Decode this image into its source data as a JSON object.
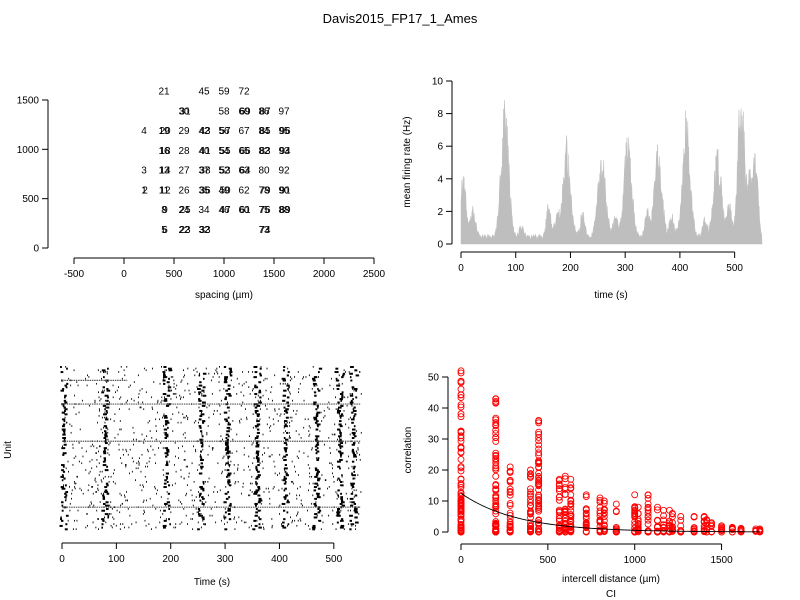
{
  "figure_title": "Davis2015_FP17_1_Ames",
  "chart_data": [
    {
      "type": "scatter",
      "id": "unit-layout",
      "xlabel": "spacing (µm)",
      "ylabel": "",
      "xlim": [
        -500,
        2500
      ],
      "ylim": [
        0,
        1500
      ],
      "xticks": [
        -500,
        0,
        500,
        1000,
        1500,
        2000,
        2500
      ],
      "yticks": [
        0,
        500,
        1000,
        1500
      ],
      "labels": [
        {
          "text": "21",
          "x": 400,
          "y": 1590
        },
        {
          "text": "45",
          "x": 800,
          "y": 1590
        },
        {
          "text": "59",
          "x": 1000,
          "y": 1590
        },
        {
          "text": "72",
          "x": 1200,
          "y": 1590
        },
        {
          "text": "30",
          "x": 600,
          "y": 1390
        },
        {
          "text": "31",
          "x": 610,
          "y": 1390
        },
        {
          "text": "58",
          "x": 1000,
          "y": 1390
        },
        {
          "text": "60",
          "x": 1200,
          "y": 1390
        },
        {
          "text": "69",
          "x": 1210,
          "y": 1390
        },
        {
          "text": "86",
          "x": 1400,
          "y": 1390
        },
        {
          "text": "87",
          "x": 1410,
          "y": 1390
        },
        {
          "text": "97",
          "x": 1600,
          "y": 1390
        },
        {
          "text": "4",
          "x": 200,
          "y": 1190
        },
        {
          "text": "19",
          "x": 400,
          "y": 1190
        },
        {
          "text": "20",
          "x": 410,
          "y": 1190
        },
        {
          "text": "29",
          "x": 600,
          "y": 1190
        },
        {
          "text": "42",
          "x": 800,
          "y": 1190
        },
        {
          "text": "43",
          "x": 810,
          "y": 1190
        },
        {
          "text": "56",
          "x": 1000,
          "y": 1190
        },
        {
          "text": "57",
          "x": 1010,
          "y": 1190
        },
        {
          "text": "67",
          "x": 1200,
          "y": 1190
        },
        {
          "text": "84",
          "x": 1400,
          "y": 1190
        },
        {
          "text": "85",
          "x": 1410,
          "y": 1190
        },
        {
          "text": "95",
          "x": 1600,
          "y": 1190
        },
        {
          "text": "96",
          "x": 1610,
          "y": 1190
        },
        {
          "text": "16",
          "x": 400,
          "y": 990
        },
        {
          "text": "18",
          "x": 410,
          "y": 990
        },
        {
          "text": "28",
          "x": 600,
          "y": 990
        },
        {
          "text": "40",
          "x": 800,
          "y": 990
        },
        {
          "text": "41",
          "x": 810,
          "y": 990
        },
        {
          "text": "54",
          "x": 1000,
          "y": 990
        },
        {
          "text": "55",
          "x": 1010,
          "y": 990
        },
        {
          "text": "65",
          "x": 1200,
          "y": 990
        },
        {
          "text": "66",
          "x": 1210,
          "y": 990
        },
        {
          "text": "82",
          "x": 1400,
          "y": 990
        },
        {
          "text": "83",
          "x": 1410,
          "y": 990
        },
        {
          "text": "93",
          "x": 1600,
          "y": 990
        },
        {
          "text": "94",
          "x": 1610,
          "y": 990
        },
        {
          "text": "3",
          "x": 200,
          "y": 790
        },
        {
          "text": "13",
          "x": 400,
          "y": 790
        },
        {
          "text": "14",
          "x": 410,
          "y": 790
        },
        {
          "text": "27",
          "x": 600,
          "y": 790
        },
        {
          "text": "37",
          "x": 800,
          "y": 790
        },
        {
          "text": "38",
          "x": 810,
          "y": 790
        },
        {
          "text": "52",
          "x": 1000,
          "y": 790
        },
        {
          "text": "53",
          "x": 1010,
          "y": 790
        },
        {
          "text": "63",
          "x": 1200,
          "y": 790
        },
        {
          "text": "64",
          "x": 1210,
          "y": 790
        },
        {
          "text": "80",
          "x": 1400,
          "y": 790
        },
        {
          "text": "92",
          "x": 1600,
          "y": 790
        },
        {
          "text": "1",
          "x": 200,
          "y": 590
        },
        {
          "text": "2",
          "x": 210,
          "y": 590
        },
        {
          "text": "11",
          "x": 400,
          "y": 590
        },
        {
          "text": "12",
          "x": 410,
          "y": 590
        },
        {
          "text": "26",
          "x": 600,
          "y": 590
        },
        {
          "text": "35",
          "x": 800,
          "y": 590
        },
        {
          "text": "36",
          "x": 810,
          "y": 590
        },
        {
          "text": "49",
          "x": 1000,
          "y": 590
        },
        {
          "text": "50",
          "x": 1010,
          "y": 590
        },
        {
          "text": "62",
          "x": 1200,
          "y": 590
        },
        {
          "text": "78",
          "x": 1400,
          "y": 590
        },
        {
          "text": "79",
          "x": 1410,
          "y": 590
        },
        {
          "text": "90",
          "x": 1600,
          "y": 590
        },
        {
          "text": "91",
          "x": 1610,
          "y": 590
        },
        {
          "text": "8",
          "x": 400,
          "y": 390
        },
        {
          "text": "9",
          "x": 410,
          "y": 390
        },
        {
          "text": "24",
          "x": 600,
          "y": 390
        },
        {
          "text": "25",
          "x": 610,
          "y": 390
        },
        {
          "text": "34",
          "x": 800,
          "y": 390
        },
        {
          "text": "46",
          "x": 1000,
          "y": 390
        },
        {
          "text": "47",
          "x": 1010,
          "y": 390
        },
        {
          "text": "60",
          "x": 1200,
          "y": 390
        },
        {
          "text": "61",
          "x": 1210,
          "y": 390
        },
        {
          "text": "75",
          "x": 1400,
          "y": 390
        },
        {
          "text": "76",
          "x": 1410,
          "y": 390
        },
        {
          "text": "88",
          "x": 1600,
          "y": 390
        },
        {
          "text": "89",
          "x": 1610,
          "y": 390
        },
        {
          "text": "5",
          "x": 400,
          "y": 190
        },
        {
          "text": "6",
          "x": 410,
          "y": 190
        },
        {
          "text": "22",
          "x": 600,
          "y": 190
        },
        {
          "text": "23",
          "x": 610,
          "y": 190
        },
        {
          "text": "32",
          "x": 800,
          "y": 190
        },
        {
          "text": "33",
          "x": 810,
          "y": 190
        },
        {
          "text": "73",
          "x": 1400,
          "y": 190
        },
        {
          "text": "74",
          "x": 1410,
          "y": 190
        }
      ]
    },
    {
      "type": "area",
      "id": "firing-rate",
      "xlabel": "time (s)",
      "ylabel": "mean firing rate (Hz)",
      "xlim": [
        0,
        550
      ],
      "ylim": [
        0,
        10
      ],
      "xticks": [
        0,
        100,
        200,
        300,
        400,
        500
      ],
      "yticks": [
        0,
        2,
        4,
        6,
        8,
        10
      ],
      "color": "#bebebe",
      "baseline": 0.25,
      "bursts": [
        {
          "t": 4,
          "peak": 4.2,
          "width": 5
        },
        {
          "t": 22,
          "peak": 1.8,
          "width": 5
        },
        {
          "t": 80,
          "peak": 8.8,
          "width": 7
        },
        {
          "t": 110,
          "peak": 0.9,
          "width": 4
        },
        {
          "t": 160,
          "peak": 2.3,
          "width": 4
        },
        {
          "t": 175,
          "peak": 1.4,
          "width": 4
        },
        {
          "t": 193,
          "peak": 6.3,
          "width": 7
        },
        {
          "t": 222,
          "peak": 1.7,
          "width": 4
        },
        {
          "t": 257,
          "peak": 5.9,
          "width": 7
        },
        {
          "t": 282,
          "peak": 1.5,
          "width": 4
        },
        {
          "t": 305,
          "peak": 6.5,
          "width": 7
        },
        {
          "t": 340,
          "peak": 1.7,
          "width": 4
        },
        {
          "t": 360,
          "peak": 5.8,
          "width": 7
        },
        {
          "t": 385,
          "peak": 1.6,
          "width": 4
        },
        {
          "t": 412,
          "peak": 8.3,
          "width": 7
        },
        {
          "t": 445,
          "peak": 1.3,
          "width": 4
        },
        {
          "t": 469,
          "peak": 6.0,
          "width": 7
        },
        {
          "t": 490,
          "peak": 2.3,
          "width": 4
        },
        {
          "t": 512,
          "peak": 9.8,
          "width": 6
        },
        {
          "t": 527,
          "peak": 3.2,
          "width": 4
        },
        {
          "t": 537,
          "peak": 6.1,
          "width": 5
        }
      ]
    },
    {
      "type": "scatter",
      "id": "raster",
      "xlabel": "Time (s)",
      "ylabel": "Unit",
      "xlim": [
        0,
        550
      ],
      "xticks": [
        0,
        100,
        200,
        300,
        400,
        500
      ],
      "units": 97,
      "color": "#000000",
      "wave_times": [
        4,
        80,
        193,
        257,
        305,
        360,
        412,
        469,
        512,
        537
      ],
      "line_units": [
        [
          8,
          0,
          120
        ],
        [
          22,
          0,
          550
        ],
        [
          44,
          0,
          550
        ],
        [
          83,
          0,
          550
        ]
      ]
    },
    {
      "type": "scatter",
      "id": "correlation",
      "xlabel": "intercell distance (µm)",
      "ylabel": "correlation",
      "sublabel": "CI",
      "xlim": [
        0,
        1750
      ],
      "ylim": [
        0,
        52
      ],
      "xticks": [
        0,
        500,
        1000,
        1500
      ],
      "yticks": [
        0,
        10,
        20,
        30,
        40,
        50
      ],
      "point_color": "#ff0000",
      "line_color": "#000000",
      "distances": [
        0,
        200,
        283,
        400,
        447,
        566,
        600,
        632,
        721,
        800,
        825,
        894,
        1000,
        1020,
        1077,
        1131,
        1166,
        1200,
        1217,
        1265,
        1342,
        1400,
        1414,
        1442,
        1500,
        1562,
        1612,
        1697,
        1720
      ],
      "maxima": [
        52,
        43,
        21,
        20,
        36,
        17,
        18,
        17,
        12,
        11,
        10,
        9,
        12,
        8,
        12,
        8,
        7,
        7,
        6,
        5,
        5,
        5,
        4,
        3,
        2,
        1.5,
        1.2,
        1,
        1
      ],
      "fit": {
        "a": 12.5,
        "scale": 320
      }
    }
  ]
}
